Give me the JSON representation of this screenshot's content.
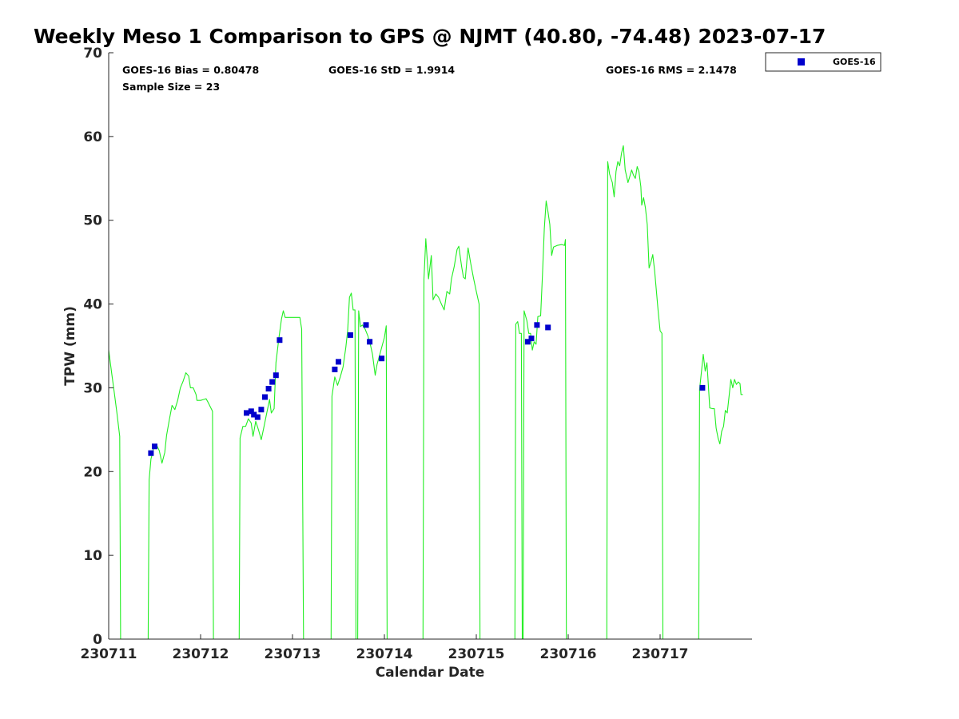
{
  "chart_data": {
    "type": "line",
    "title": "Weekly Meso 1 Comparison to GPS @ NJMT (40.80, -74.48) 2023-07-17",
    "xlabel": "Calendar Date",
    "ylabel": "TPW (mm)",
    "xlim": [
      0,
      7
    ],
    "ylim": [
      0,
      70
    ],
    "y_ticks": [
      0,
      10,
      20,
      30,
      40,
      50,
      60,
      70
    ],
    "x_ticks": [
      {
        "value": 0,
        "label": "230711"
      },
      {
        "value": 1,
        "label": "230712"
      },
      {
        "value": 2,
        "label": "230713"
      },
      {
        "value": 3,
        "label": "230714"
      },
      {
        "value": 4,
        "label": "230715"
      },
      {
        "value": 5,
        "label": "230716"
      },
      {
        "value": 6,
        "label": "230717"
      }
    ],
    "grid": false,
    "legend_position": "top-right",
    "stats": {
      "bias": "GOES-16 Bias = 0.80478",
      "std": "GOES-16 StD = 1.9914",
      "rms": "GOES-16 RMS = 2.1478",
      "sample": "Sample Size = 23"
    },
    "legend": [
      {
        "name": "GOES-16",
        "marker": "square",
        "color": "#0000cc"
      }
    ],
    "series": [
      {
        "name": "GPS",
        "style": "line",
        "color": "#22ee22",
        "points": [
          [
            0.0,
            34.5
          ],
          [
            0.03,
            32
          ],
          [
            0.06,
            29.5
          ],
          [
            0.09,
            27
          ],
          [
            0.12,
            24.2
          ],
          [
            0.13,
            0
          ],
          [
            0.43,
            0
          ],
          [
            0.44,
            19
          ],
          [
            0.46,
            21.5
          ],
          [
            0.49,
            22.8
          ],
          [
            0.52,
            23.2
          ],
          [
            0.55,
            22.5
          ],
          [
            0.58,
            21
          ],
          [
            0.61,
            22.3
          ],
          [
            0.63,
            24.3
          ],
          [
            0.66,
            26.2
          ],
          [
            0.69,
            27.9
          ],
          [
            0.72,
            27.4
          ],
          [
            0.75,
            28.5
          ],
          [
            0.78,
            30
          ],
          [
            0.81,
            30.8
          ],
          [
            0.84,
            31.8
          ],
          [
            0.87,
            31.4
          ],
          [
            0.89,
            30
          ],
          [
            0.92,
            30
          ],
          [
            0.95,
            29.2
          ],
          [
            0.96,
            28.5
          ],
          [
            1.0,
            28.5
          ],
          [
            1.03,
            28.6
          ],
          [
            1.06,
            28.7
          ],
          [
            1.08,
            28.3
          ],
          [
            1.13,
            27.2
          ],
          [
            1.14,
            0
          ],
          [
            1.42,
            0
          ],
          [
            1.43,
            24
          ],
          [
            1.46,
            25.4
          ],
          [
            1.49,
            25.4
          ],
          [
            1.52,
            26.3
          ],
          [
            1.55,
            25.8
          ],
          [
            1.57,
            24.2
          ],
          [
            1.6,
            26
          ],
          [
            1.63,
            25
          ],
          [
            1.66,
            23.8
          ],
          [
            1.69,
            25.4
          ],
          [
            1.72,
            27
          ],
          [
            1.75,
            28.6
          ],
          [
            1.77,
            27
          ],
          [
            1.8,
            27.5
          ],
          [
            1.82,
            33
          ],
          [
            1.85,
            35.8
          ],
          [
            1.88,
            38.2
          ],
          [
            1.9,
            39.2
          ],
          [
            1.92,
            38.4
          ],
          [
            1.95,
            38.4
          ],
          [
            2.0,
            38.4
          ],
          [
            2.08,
            38.4
          ],
          [
            2.1,
            37
          ],
          [
            2.12,
            0
          ],
          [
            2.42,
            0
          ],
          [
            2.43,
            29
          ],
          [
            2.46,
            31.3
          ],
          [
            2.49,
            30.3
          ],
          [
            2.52,
            31.3
          ],
          [
            2.55,
            32.5
          ],
          [
            2.58,
            34.8
          ],
          [
            2.6,
            36.8
          ],
          [
            2.62,
            40.8
          ],
          [
            2.64,
            41.3
          ],
          [
            2.66,
            39.3
          ],
          [
            2.68,
            39.3
          ],
          [
            2.69,
            0
          ],
          [
            2.71,
            0
          ],
          [
            2.72,
            39.2
          ],
          [
            2.74,
            37.3
          ],
          [
            2.76,
            37.5
          ],
          [
            2.79,
            37
          ],
          [
            2.82,
            36.2
          ],
          [
            2.85,
            35
          ],
          [
            2.87,
            34
          ],
          [
            2.9,
            31.5
          ],
          [
            2.92,
            32.8
          ],
          [
            2.95,
            34
          ],
          [
            2.98,
            35.2
          ],
          [
            3.0,
            36
          ],
          [
            3.02,
            37.4
          ],
          [
            3.03,
            0
          ],
          [
            3.42,
            0
          ],
          [
            3.43,
            43
          ],
          [
            3.45,
            47.8
          ],
          [
            3.48,
            43
          ],
          [
            3.51,
            45.8
          ],
          [
            3.53,
            40.5
          ],
          [
            3.56,
            41.2
          ],
          [
            3.59,
            40.8
          ],
          [
            3.62,
            40
          ],
          [
            3.65,
            39.3
          ],
          [
            3.68,
            41.5
          ],
          [
            3.71,
            41.2
          ],
          [
            3.73,
            43
          ],
          [
            3.76,
            44.5
          ],
          [
            3.79,
            46.5
          ],
          [
            3.81,
            46.9
          ],
          [
            3.84,
            44.5
          ],
          [
            3.86,
            43.2
          ],
          [
            3.88,
            43
          ],
          [
            3.9,
            45.5
          ],
          [
            3.91,
            46.7
          ],
          [
            3.94,
            44.8
          ],
          [
            3.97,
            43.1
          ],
          [
            4.0,
            41.5
          ],
          [
            4.03,
            40
          ],
          [
            4.04,
            0
          ],
          [
            4.42,
            0
          ],
          [
            4.43,
            37.6
          ],
          [
            4.45,
            37.9
          ],
          [
            4.47,
            36.5
          ],
          [
            4.49,
            36.5
          ],
          [
            4.5,
            0
          ],
          [
            4.51,
            0
          ],
          [
            4.52,
            39.2
          ],
          [
            4.55,
            38
          ],
          [
            4.57,
            36.5
          ],
          [
            4.59,
            36.5
          ],
          [
            4.61,
            34.5
          ],
          [
            4.63,
            35.5
          ],
          [
            4.65,
            35.2
          ],
          [
            4.67,
            38.5
          ],
          [
            4.7,
            38.6
          ],
          [
            4.72,
            43.5
          ],
          [
            4.74,
            49
          ],
          [
            4.76,
            52.3
          ],
          [
            4.78,
            51
          ],
          [
            4.8,
            49.5
          ],
          [
            4.82,
            45.8
          ],
          [
            4.84,
            46.8
          ],
          [
            4.88,
            47
          ],
          [
            4.93,
            47.1
          ],
          [
            4.96,
            47
          ],
          [
            4.97,
            47.7
          ],
          [
            4.98,
            0
          ],
          [
            5.42,
            0
          ],
          [
            5.43,
            57
          ],
          [
            5.45,
            55.5
          ],
          [
            5.48,
            54.5
          ],
          [
            5.5,
            52.8
          ],
          [
            5.52,
            55.8
          ],
          [
            5.54,
            57
          ],
          [
            5.56,
            56.5
          ],
          [
            5.58,
            58
          ],
          [
            5.6,
            58.9
          ],
          [
            5.62,
            56
          ],
          [
            5.65,
            54.5
          ],
          [
            5.67,
            55.2
          ],
          [
            5.69,
            56
          ],
          [
            5.71,
            55.4
          ],
          [
            5.73,
            55
          ],
          [
            5.75,
            56.4
          ],
          [
            5.77,
            55.8
          ],
          [
            5.79,
            54
          ],
          [
            5.8,
            51.8
          ],
          [
            5.82,
            52.7
          ],
          [
            5.84,
            51.5
          ],
          [
            5.86,
            49.5
          ],
          [
            5.88,
            44.3
          ],
          [
            5.9,
            45
          ],
          [
            5.92,
            45.9
          ],
          [
            5.94,
            44
          ],
          [
            5.96,
            41.5
          ],
          [
            5.98,
            39
          ],
          [
            6.0,
            36.8
          ],
          [
            6.02,
            36.5
          ],
          [
            6.03,
            0
          ],
          [
            6.42,
            0
          ],
          [
            6.43,
            29.8
          ],
          [
            6.45,
            32
          ],
          [
            6.47,
            34
          ],
          [
            6.49,
            32
          ],
          [
            6.51,
            33
          ],
          [
            6.52,
            31.2
          ],
          [
            6.54,
            27.6
          ],
          [
            6.57,
            27.5
          ],
          [
            6.59,
            27.5
          ],
          [
            6.61,
            25.2
          ],
          [
            6.63,
            24
          ],
          [
            6.65,
            23.3
          ],
          [
            6.67,
            24.8
          ],
          [
            6.69,
            25.4
          ],
          [
            6.71,
            27.3
          ],
          [
            6.73,
            27
          ],
          [
            6.75,
            29
          ],
          [
            6.77,
            31
          ],
          [
            6.79,
            30
          ],
          [
            6.81,
            31
          ],
          [
            6.83,
            30.4
          ],
          [
            6.85,
            30.7
          ],
          [
            6.87,
            30.5
          ],
          [
            6.88,
            29.2
          ],
          [
            6.9,
            29.2
          ]
        ]
      },
      {
        "name": "GOES-16",
        "style": "marker",
        "marker": "square",
        "color": "#0000cc",
        "points": [
          [
            0.46,
            22.2
          ],
          [
            0.5,
            23
          ],
          [
            1.5,
            27
          ],
          [
            1.55,
            27.2
          ],
          [
            1.58,
            26.8
          ],
          [
            1.62,
            26.5
          ],
          [
            1.66,
            27.4
          ],
          [
            1.7,
            28.9
          ],
          [
            1.74,
            29.9
          ],
          [
            1.78,
            30.7
          ],
          [
            1.82,
            31.5
          ],
          [
            1.86,
            35.7
          ],
          [
            2.46,
            32.2
          ],
          [
            2.5,
            33.1
          ],
          [
            2.63,
            36.3
          ],
          [
            2.8,
            37.5
          ],
          [
            2.84,
            35.5
          ],
          [
            2.97,
            33.5
          ],
          [
            4.56,
            35.5
          ],
          [
            4.6,
            35.9
          ],
          [
            4.66,
            37.5
          ],
          [
            4.78,
            37.2
          ],
          [
            6.46,
            30
          ]
        ]
      }
    ]
  }
}
